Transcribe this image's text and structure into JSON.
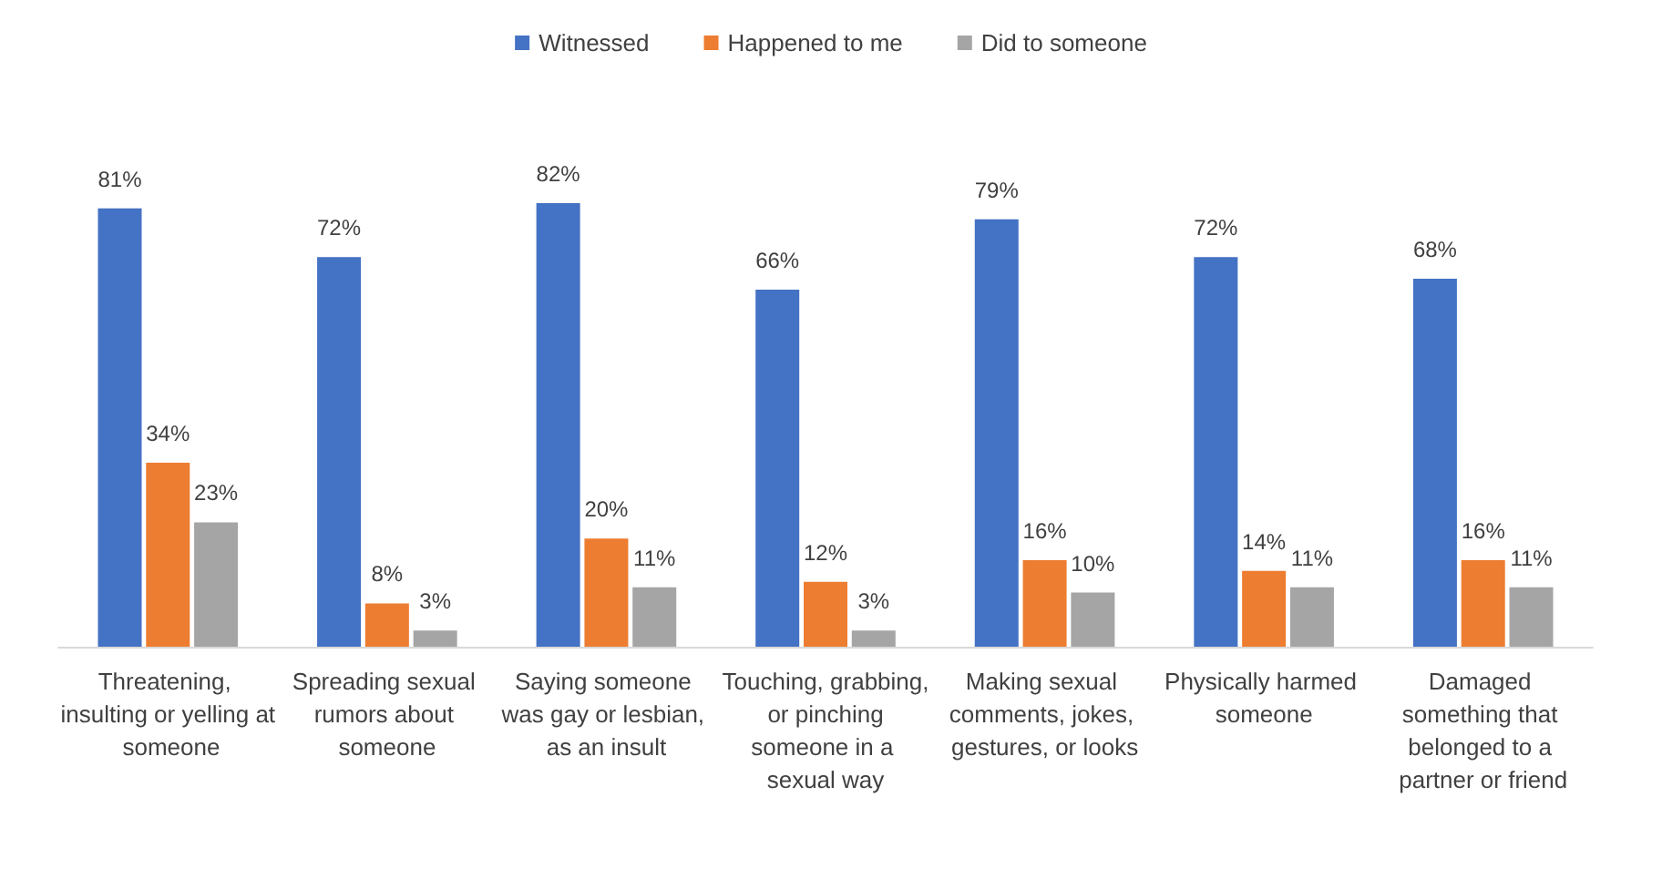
{
  "chart_data": {
    "type": "bar",
    "categories": [
      "Threatening, insulting or yelling at someone",
      "Spreading sexual rumors about someone",
      "Saying someone was gay or lesbian, as an insult",
      "Touching, grabbing, or pinching someone in a sexual way",
      "Making sexual comments, jokes, gestures, or looks",
      "Physically harmed someone",
      "Damaged something that belonged to a partner or friend"
    ],
    "series": [
      {
        "name": "Witnessed",
        "color": "#4472c4",
        "values": [
          81,
          72,
          82,
          66,
          79,
          72,
          68
        ],
        "value_labels": [
          "81%",
          "72%",
          "82%",
          "66%",
          "79%",
          "72%",
          "68%"
        ]
      },
      {
        "name": "Happened to me",
        "color": "#ed7d31",
        "values": [
          34,
          8,
          20,
          12,
          16,
          14,
          16
        ],
        "value_labels": [
          "34%",
          "8%",
          "20%",
          "12%",
          "16%",
          "14%",
          "16%"
        ]
      },
      {
        "name": "Did to someone",
        "color": "#a5a5a5",
        "values": [
          23,
          3,
          11,
          3,
          10,
          11,
          11
        ],
        "value_labels": [
          "23%",
          "3%",
          "11%",
          "3%",
          "10%",
          "11%",
          "11%"
        ]
      }
    ],
    "legend": "top"
  }
}
